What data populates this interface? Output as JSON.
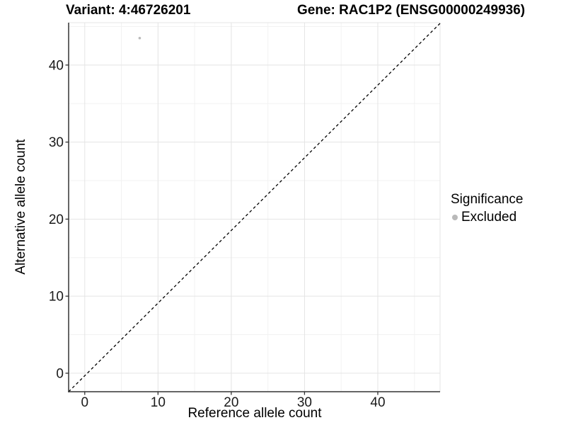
{
  "titles": {
    "variant": "Variant: 4:46726201",
    "gene": "Gene: RAC1P2 (ENSG00000249936)"
  },
  "legend": {
    "title": "Significance",
    "items": [
      {
        "label": "Excluded",
        "color": "#b9b9b9"
      }
    ]
  },
  "chart_data": {
    "type": "scatter",
    "title": "Variant: 4:46726201   Gene: RAC1P2 (ENSG00000249936)",
    "xlabel": "Reference allele count",
    "ylabel": "Alternative allele count",
    "xlim": [
      -2.2,
      48.5
    ],
    "ylim": [
      -2.4,
      45.5
    ],
    "x_ticks": [
      0,
      10,
      20,
      30,
      40
    ],
    "y_ticks": [
      0,
      10,
      20,
      30,
      40
    ],
    "x_minor_ticks": [
      5,
      15,
      25,
      35,
      45
    ],
    "y_minor_ticks": [
      5,
      15,
      25,
      35,
      45
    ],
    "grid": true,
    "legend_position": "right",
    "series": [
      {
        "name": "Excluded",
        "color": "#b9b9b9",
        "points": [
          {
            "x": 7.5,
            "y": 43.5
          }
        ]
      }
    ],
    "reference_line": {
      "slope": 1,
      "intercept": 0,
      "style": "dashed",
      "color": "#000000"
    },
    "colors": {
      "axis_line": "#333333",
      "major_grid": "#e4e4e4",
      "minor_grid": "#f2f2f2",
      "tick_label": "#1a1a1a"
    }
  }
}
